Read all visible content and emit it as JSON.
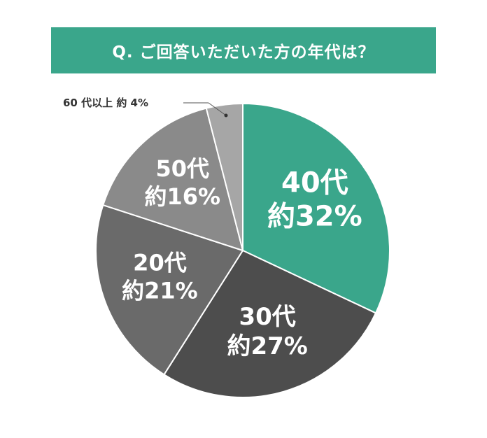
{
  "header": {
    "title": "Q. ご回答いただいた方の年代は？"
  },
  "colors": {
    "banner": "#3aa68b"
  },
  "chart_data": {
    "type": "pie",
    "title": "Q. ご回答いただいた方の年代は？",
    "start_angle_deg": 0,
    "direction": "clockwise",
    "slices": [
      {
        "category": "40代",
        "value_text": "約32%",
        "value": 32,
        "color": "#3aa68b"
      },
      {
        "category": "30代",
        "value_text": "約27%",
        "value": 27,
        "color": "#4d4d4d"
      },
      {
        "category": "20代",
        "value_text": "約21%",
        "value": 21,
        "color": "#6a6a6a"
      },
      {
        "category": "50代",
        "value_text": "約16%",
        "value": 16,
        "color": "#8a8a8a"
      },
      {
        "category": "60代以上",
        "value_text": "約4%",
        "value": 4,
        "color": "#a6a6a6"
      }
    ],
    "callout": {
      "text": "60 代以上 約 4%"
    }
  }
}
